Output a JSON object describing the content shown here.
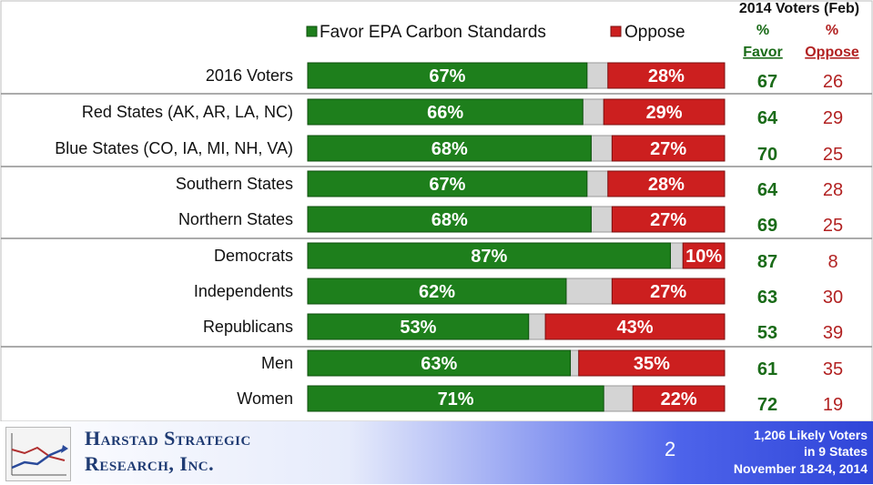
{
  "legend": {
    "favor_label": "Favor EPA Carbon Standards",
    "oppose_label": "Oppose"
  },
  "prior_header": {
    "title": "2014 Voters (Feb)",
    "favor_pct_label": "%",
    "favor_label": "Favor",
    "oppose_pct_label": "%",
    "oppose_label": "Oppose"
  },
  "colors": {
    "favor": "#1e7f1c",
    "oppose": "#cc1f1f",
    "neutral": "#d4d4d4",
    "favor_text": "#1a6b18",
    "oppose_text": "#b22222"
  },
  "chart_data": {
    "type": "bar",
    "stacked": true,
    "orientation": "horizontal",
    "categories": [
      "2016 Voters",
      "Red States (AK, AR, LA, NC)",
      "Blue States (CO, IA, MI, NH, VA)",
      "Southern States",
      "Northern States",
      "Democrats",
      "Independents",
      "Republicans",
      "Men",
      "Women"
    ],
    "series": [
      {
        "name": "Favor EPA Carbon Standards",
        "values": [
          67,
          66,
          68,
          67,
          68,
          87,
          62,
          53,
          63,
          71
        ]
      },
      {
        "name": "Oppose",
        "values": [
          28,
          29,
          27,
          28,
          27,
          10,
          27,
          43,
          35,
          22
        ]
      }
    ],
    "data_labels": {
      "favor": [
        "67%",
        "66%",
        "68%",
        "67%",
        "68%",
        "87%",
        "62%",
        "53%",
        "63%",
        "71%"
      ],
      "oppose": [
        "28%",
        "29%",
        "27%",
        "28%",
        "27%",
        "10%",
        "27%",
        "43%",
        "35%",
        "22%"
      ]
    },
    "prior_2014": {
      "favor": [
        67,
        64,
        70,
        64,
        69,
        87,
        63,
        53,
        61,
        72
      ],
      "oppose": [
        26,
        29,
        25,
        28,
        25,
        8,
        30,
        39,
        35,
        19
      ]
    },
    "groups": [
      [
        0
      ],
      [
        1,
        2
      ],
      [
        3,
        4
      ],
      [
        5,
        6,
        7
      ],
      [
        8,
        9
      ]
    ],
    "xlim": [
      0,
      100
    ]
  },
  "footer": {
    "logo_line1": "Harstad Strategic",
    "logo_line2": "Research, Inc.",
    "page_number": "2",
    "note_line1": "1,206 Likely Voters",
    "note_line2": "in 9 States",
    "note_line3": "November 18-24, 2014"
  }
}
